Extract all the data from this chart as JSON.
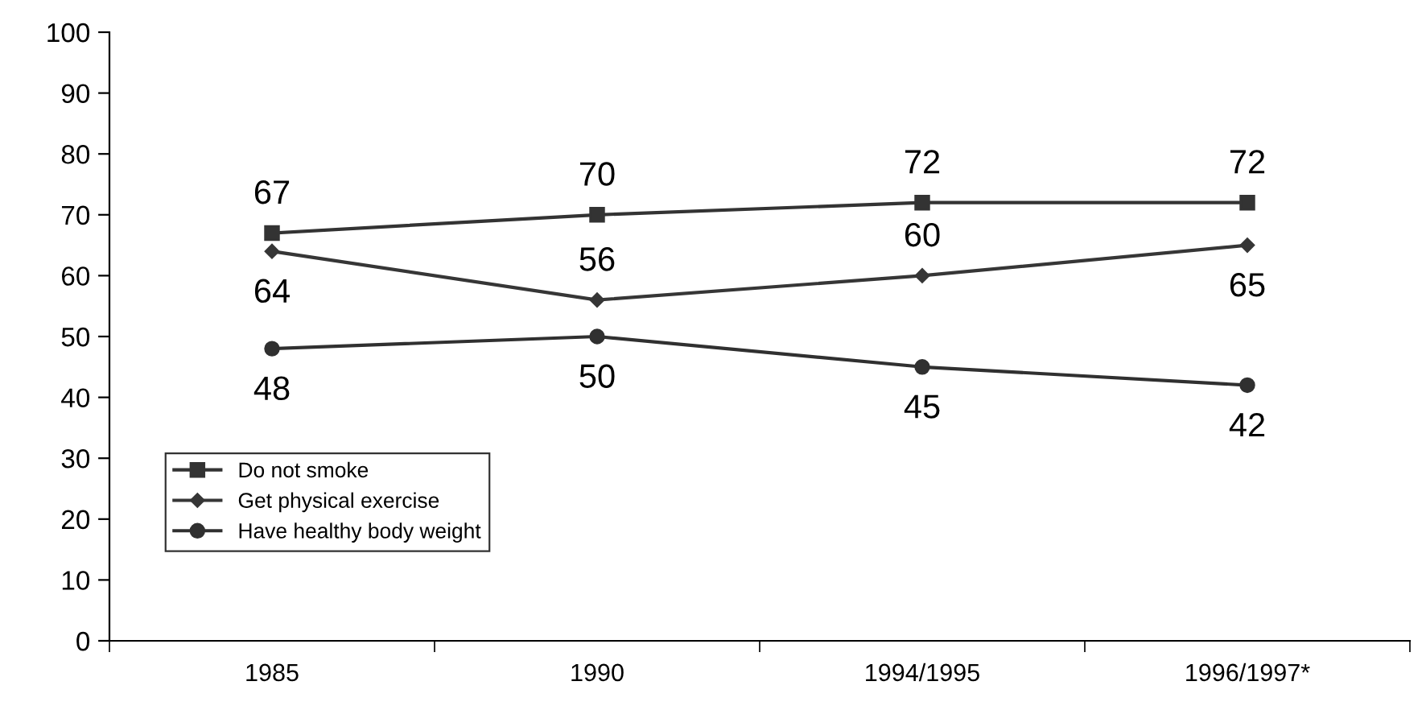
{
  "chart_data": {
    "type": "line",
    "categories": [
      "1985",
      "1990",
      "1994/1995",
      "1996/1997*"
    ],
    "series": [
      {
        "name": "Do not smoke",
        "color": "#333333",
        "marker": "square",
        "values": [
          67,
          70,
          72,
          72
        ]
      },
      {
        "name": "Get physical exercise",
        "color": "#363636",
        "marker": "diamond",
        "values": [
          64,
          56,
          60,
          65
        ]
      },
      {
        "name": "Have healthy body weight",
        "color": "#303030",
        "marker": "circle",
        "values": [
          48,
          50,
          45,
          42
        ]
      }
    ],
    "ylim": [
      0,
      100
    ],
    "yticks": [
      0,
      10,
      20,
      30,
      40,
      50,
      60,
      70,
      80,
      90,
      100
    ],
    "data_labels": true,
    "grid": false,
    "legend": "bottom left",
    "line_style": "solid"
  }
}
